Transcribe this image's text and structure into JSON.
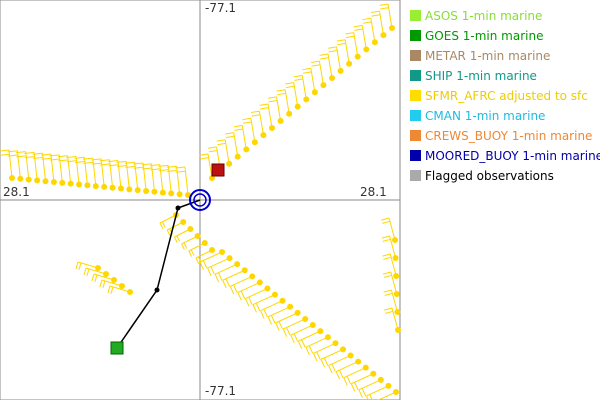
{
  "plot": {
    "labels": {
      "top": "-77.1",
      "bottom": "-77.1",
      "left": "28.1",
      "right": "28.1"
    }
  },
  "legend": [
    {
      "label": "ASOS 1-min marine",
      "color": "#99ee33",
      "text_color": "#88dd33"
    },
    {
      "label": "GOES 1-min marine",
      "color": "#009900",
      "text_color": "#009900"
    },
    {
      "label": "METAR 1-min marine",
      "color": "#aa8866",
      "text_color": "#aa8866"
    },
    {
      "label": "SHIP 1-min marine",
      "color": "#119988",
      "text_color": "#119988"
    },
    {
      "label": "SFMR_AFRC adjusted to sfc",
      "color": "#ffdd00",
      "text_color": "#eecc00"
    },
    {
      "label": "CMAN 1-min marine",
      "color": "#22ccee",
      "text_color": "#22bbdd"
    },
    {
      "label": "CREWS_BUOY 1-min marine",
      "color": "#ee8833",
      "text_color": "#ee8833"
    },
    {
      "label": "MOORED_BUOY 1-min marine",
      "color": "#0000aa",
      "text_color": "#0000aa"
    },
    {
      "label": "Flagged observations",
      "color": "#aaaaaa",
      "text_color": "#000000"
    }
  ]
}
